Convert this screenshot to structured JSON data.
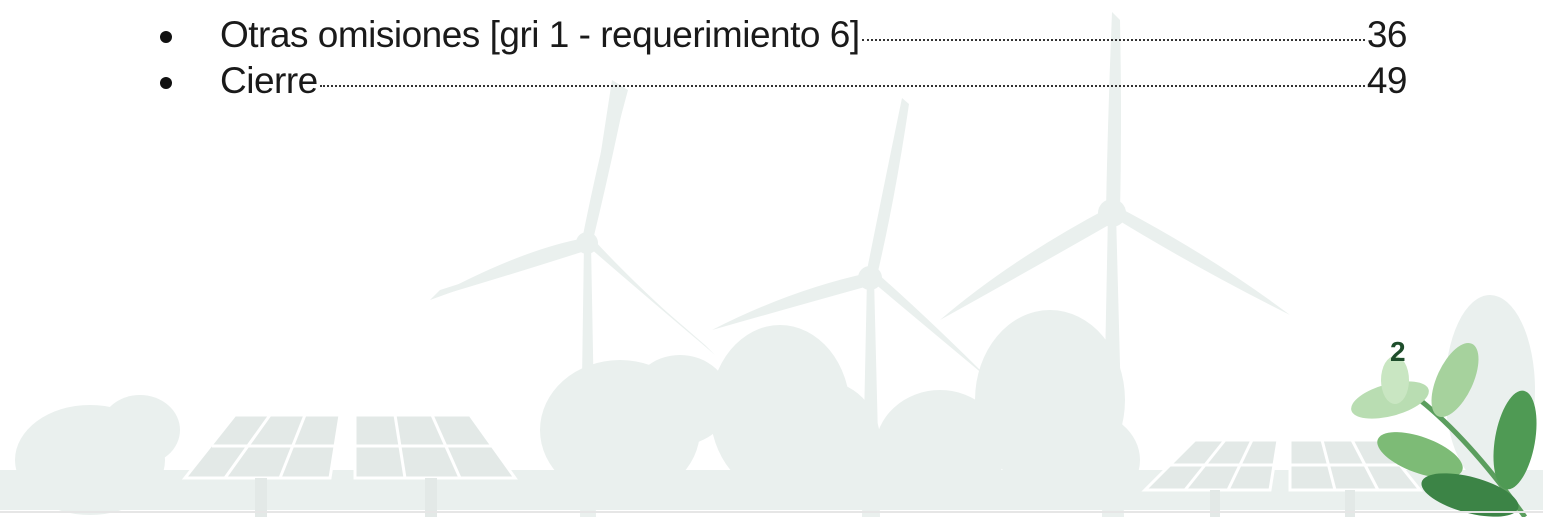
{
  "toc": {
    "entries": [
      {
        "title": "Otras omisiones [gri 1 - requerimiento 6]",
        "page": 36
      },
      {
        "title": "Cierre",
        "page": 49
      }
    ]
  },
  "footer": {
    "page_number": 2
  }
}
